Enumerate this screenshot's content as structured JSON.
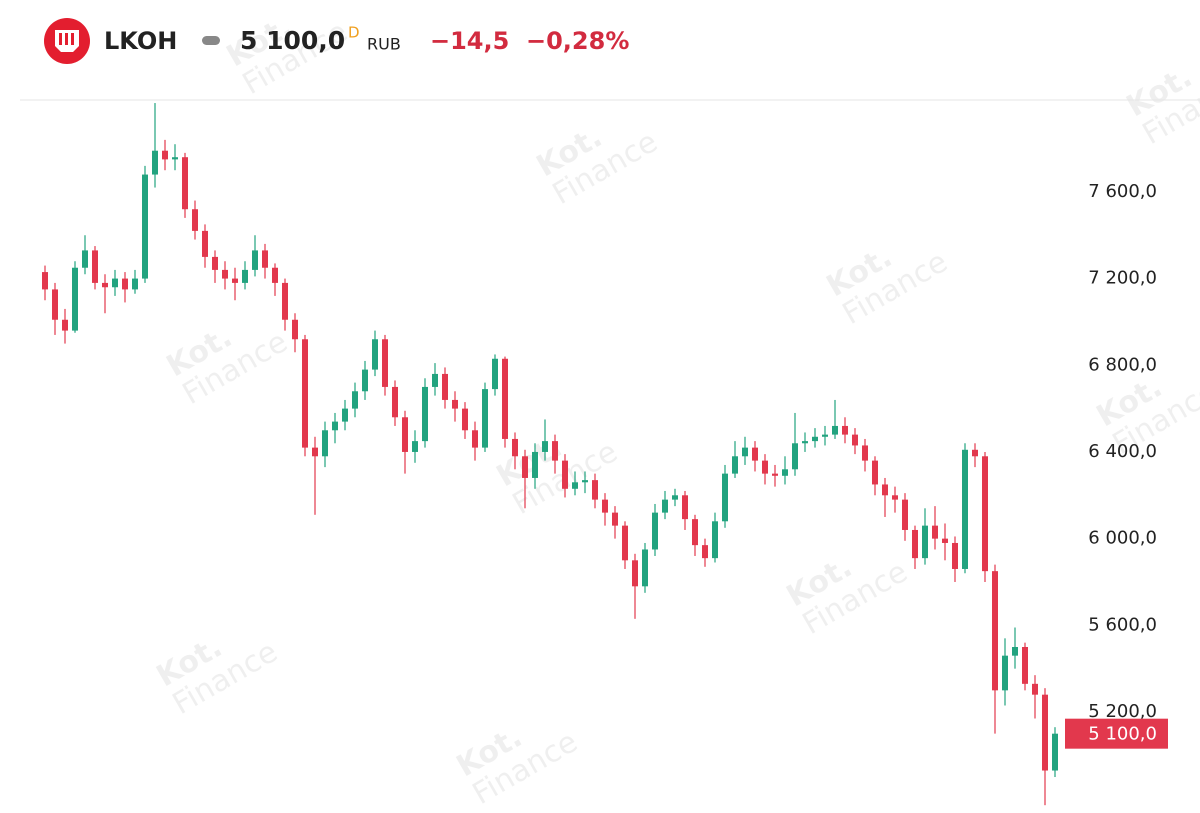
{
  "chart_data": {
    "type": "candlestick",
    "symbol": "LKOH",
    "price": "5 100,0",
    "price_flag": "D",
    "currency": "RUB",
    "change": "−14,5",
    "change_pct": "−0,28%",
    "watermark": [
      "Kot.",
      "Finance"
    ],
    "up_color": "#22a37f",
    "down_color": "#e2384d",
    "ylim": [
      4734,
      8024
    ],
    "yticks": [
      {
        "value": 5200,
        "label": "5 200,0"
      },
      {
        "value": 5600,
        "label": "5 600,0"
      },
      {
        "value": 6000,
        "label": "6 000,0"
      },
      {
        "value": 6400,
        "label": "6 400,0"
      },
      {
        "value": 6800,
        "label": "6 800,0"
      },
      {
        "value": 7200,
        "label": "7 200,0"
      },
      {
        "value": 7600,
        "label": "7 600,0"
      }
    ],
    "last_price": {
      "value": 5100,
      "label": "5 100,0"
    },
    "open": [
      7230,
      7150,
      7010,
      6960,
      7250,
      7330,
      7180,
      7160,
      7200,
      7150,
      7200,
      7680,
      7790,
      7750,
      7760,
      7520,
      7420,
      7300,
      7240,
      7200,
      7180,
      7240,
      7330,
      7250,
      7180,
      7010,
      6920,
      6420,
      6380,
      6500,
      6540,
      6600,
      6680,
      6780,
      6920,
      6700,
      6560,
      6400,
      6450,
      6700,
      6760,
      6640,
      6600,
      6500,
      6420,
      6690,
      6830,
      6460,
      6380,
      6280,
      6400,
      6450,
      6360,
      6230,
      6260,
      6270,
      6180,
      6120,
      6060,
      5900,
      5780,
      5950,
      6120,
      6180,
      6200,
      6090,
      5970,
      5910,
      6080,
      6300,
      6380,
      6420,
      6360,
      6300,
      6290,
      6320,
      6440,
      6450,
      6470,
      6480,
      6520,
      6480,
      6430,
      6360,
      6250,
      6200,
      6180,
      6040,
      5910,
      6060,
      6000,
      5980,
      5860,
      6410,
      6380,
      5850,
      5300,
      5460,
      5500,
      5330,
      5280,
      4930
    ],
    "high": [
      7260,
      7180,
      7060,
      7280,
      7400,
      7350,
      7220,
      7240,
      7230,
      7240,
      7720,
      8010,
      7840,
      7820,
      7780,
      7560,
      7450,
      7330,
      7280,
      7250,
      7280,
      7400,
      7360,
      7270,
      7200,
      7040,
      6940,
      6470,
      6540,
      6580,
      6640,
      6720,
      6820,
      6960,
      6940,
      6730,
      6590,
      6500,
      6740,
      6810,
      6790,
      6680,
      6630,
      6540,
      6720,
      6850,
      6840,
      6490,
      6410,
      6440,
      6550,
      6480,
      6390,
      6310,
      6310,
      6300,
      6210,
      6150,
      6080,
      5930,
      5980,
      6160,
      6220,
      6230,
      6220,
      6110,
      6000,
      6120,
      6340,
      6450,
      6470,
      6450,
      6390,
      6340,
      6380,
      6580,
      6490,
      6510,
      6520,
      6640,
      6560,
      6510,
      6460,
      6380,
      6280,
      6240,
      6210,
      6060,
      6140,
      6150,
      6070,
      6010,
      6440,
      6440,
      6400,
      5880,
      5540,
      5590,
      5520,
      5370,
      5310,
      5130
    ],
    "low": [
      7100,
      6940,
      6900,
      6950,
      7220,
      7150,
      7040,
      7120,
      7090,
      7130,
      7180,
      7620,
      7700,
      7700,
      7480,
      7380,
      7250,
      7180,
      7150,
      7100,
      7150,
      7210,
      7200,
      7120,
      6960,
      6860,
      6380,
      6110,
      6330,
      6440,
      6500,
      6560,
      6640,
      6750,
      6660,
      6520,
      6300,
      6350,
      6420,
      6660,
      6600,
      6540,
      6460,
      6360,
      6400,
      6660,
      6420,
      6320,
      6140,
      6230,
      6360,
      6300,
      6190,
      6200,
      6210,
      6140,
      6060,
      6000,
      5860,
      5630,
      5750,
      5920,
      6090,
      6150,
      6040,
      5920,
      5870,
      5890,
      6050,
      6280,
      6340,
      6310,
      6250,
      6240,
      6250,
      6290,
      6400,
      6420,
      6430,
      6460,
      6440,
      6390,
      6310,
      6200,
      6100,
      6120,
      5990,
      5860,
      5880,
      5950,
      5900,
      5800,
      5840,
      6330,
      5800,
      5100,
      5230,
      5400,
      5300,
      5170,
      4770,
      4900
    ],
    "close": [
      7150,
      7010,
      6960,
      7250,
      7330,
      7180,
      7160,
      7200,
      7150,
      7200,
      7680,
      7790,
      7750,
      7760,
      7520,
      7420,
      7300,
      7240,
      7200,
      7180,
      7240,
      7330,
      7250,
      7180,
      7010,
      6920,
      6420,
      6380,
      6500,
      6540,
      6600,
      6680,
      6780,
      6920,
      6700,
      6560,
      6400,
      6450,
      6700,
      6760,
      6640,
      6600,
      6500,
      6420,
      6690,
      6830,
      6460,
      6380,
      6280,
      6400,
      6450,
      6360,
      6230,
      6260,
      6270,
      6180,
      6120,
      6060,
      5900,
      5780,
      5950,
      6120,
      6180,
      6200,
      6090,
      5970,
      5910,
      6080,
      6300,
      6380,
      6420,
      6360,
      6300,
      6290,
      6320,
      6440,
      6450,
      6470,
      6480,
      6520,
      6480,
      6430,
      6360,
      6250,
      6200,
      6180,
      6040,
      5910,
      6060,
      6000,
      5980,
      5860,
      6410,
      6380,
      5850,
      5300,
      5460,
      5500,
      5330,
      5280,
      4930,
      5100
    ]
  }
}
